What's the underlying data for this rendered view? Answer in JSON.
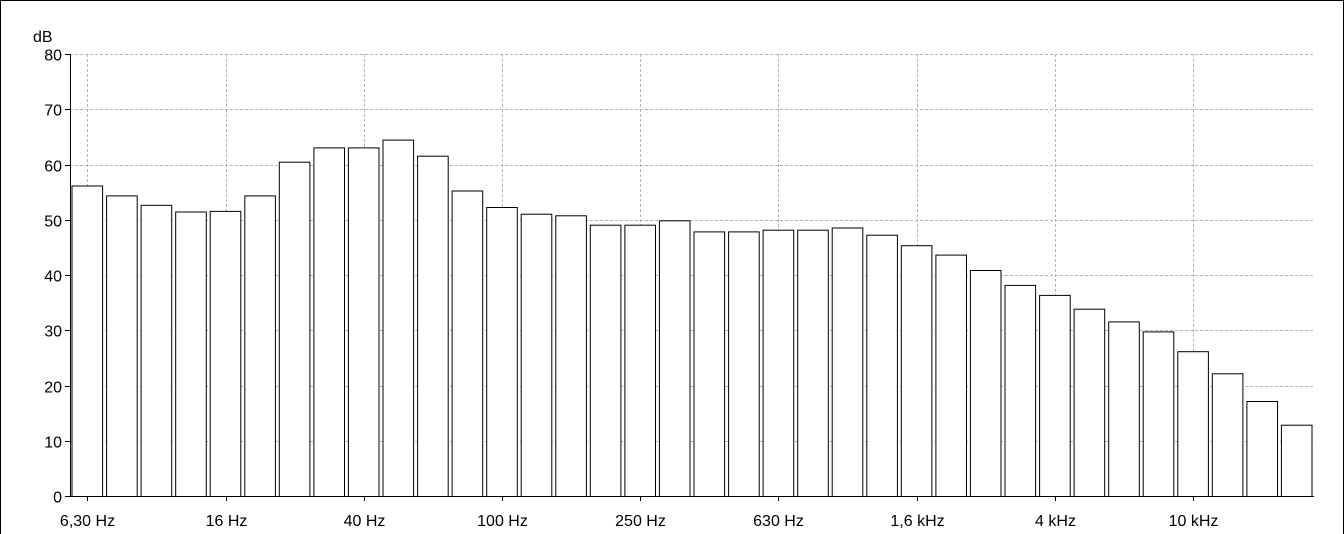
{
  "chart_data": {
    "type": "bar",
    "ylabel": "dB",
    "ylim": [
      0,
      80
    ],
    "yticks": [
      0,
      10,
      20,
      30,
      40,
      50,
      60,
      70,
      80
    ],
    "grid": true,
    "bar_fill": "#ffffff",
    "bar_stroke": "#000000",
    "grid_color": "#b4b4b4",
    "xtick_labels": [
      {
        "label": "6,30 Hz",
        "band_index": 0
      },
      {
        "label": "16 Hz",
        "band_index": 4
      },
      {
        "label": "40 Hz",
        "band_index": 8
      },
      {
        "label": "100 Hz",
        "band_index": 12
      },
      {
        "label": "250 Hz",
        "band_index": 16
      },
      {
        "label": "630 Hz",
        "band_index": 20
      },
      {
        "label": "1,6 kHz",
        "band_index": 24
      },
      {
        "label": "4 kHz",
        "band_index": 28
      },
      {
        "label": "10 kHz",
        "band_index": 32
      }
    ],
    "values": [
      56.2,
      54.4,
      52.7,
      51.5,
      51.6,
      54.4,
      60.5,
      63.1,
      63.1,
      64.5,
      61.6,
      55.3,
      52.3,
      51.1,
      50.8,
      49.1,
      49.1,
      49.9,
      47.9,
      47.9,
      48.2,
      48.2,
      48.6,
      47.3,
      45.4,
      43.7,
      40.9,
      38.2,
      36.4,
      33.9,
      31.6,
      29.8,
      26.2,
      22.2,
      17.2,
      12.9
    ]
  }
}
